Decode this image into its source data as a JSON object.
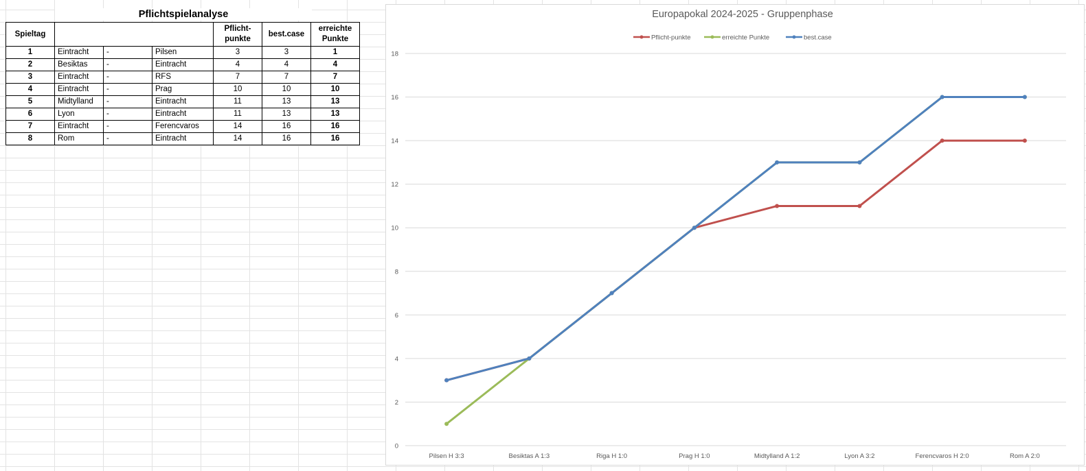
{
  "table": {
    "title": "Pflichtspielanalyse",
    "headers": {
      "spieltag": "Spieltag",
      "pflicht_line1": "Pflicht-",
      "pflicht_line2": "punkte",
      "best": "best.case",
      "erreicht_line1": "erreichte",
      "erreicht_line2": "Punkte"
    },
    "rows": [
      {
        "spieltag": "1",
        "home": "Eintracht",
        "sep": "-",
        "away": "Pilsen",
        "pflicht": "3",
        "best": "3",
        "erreicht": "1"
      },
      {
        "spieltag": "2",
        "home": "Besiktas",
        "sep": "-",
        "away": "Eintracht",
        "pflicht": "4",
        "best": "4",
        "erreicht": "4"
      },
      {
        "spieltag": "3",
        "home": "Eintracht",
        "sep": "-",
        "away": "RFS",
        "pflicht": "7",
        "best": "7",
        "erreicht": "7"
      },
      {
        "spieltag": "4",
        "home": "Eintracht",
        "sep": "-",
        "away": "Prag",
        "pflicht": "10",
        "best": "10",
        "erreicht": "10"
      },
      {
        "spieltag": "5",
        "home": "Midtylland",
        "sep": "-",
        "away": "Eintracht",
        "pflicht": "11",
        "best": "13",
        "erreicht": "13"
      },
      {
        "spieltag": "6",
        "home": "Lyon",
        "sep": "-",
        "away": "Eintracht",
        "pflicht": "11",
        "best": "13",
        "erreicht": "13"
      },
      {
        "spieltag": "7",
        "home": "Eintracht",
        "sep": "-",
        "away": "Ferencvaros",
        "pflicht": "14",
        "best": "16",
        "erreicht": "16"
      },
      {
        "spieltag": "8",
        "home": "Rom",
        "sep": "-",
        "away": "Eintracht",
        "pflicht": "14",
        "best": "16",
        "erreicht": "16"
      }
    ]
  },
  "chart_data": {
    "type": "line",
    "title": "Europapokal 2024-2025 - Gruppenphase",
    "xlabel": "",
    "ylabel": "",
    "categories": [
      "Pilsen H 3:3",
      "Besiktas A 1:3",
      "Riga H 1:0",
      "Prag H 1:0",
      "Midtylland A 1:2",
      "Lyon A 3:2",
      "Ferencvaros H 2:0",
      "Rom A 2:0"
    ],
    "series": [
      {
        "name": "Pflicht-punkte",
        "color": "#C0504D",
        "values": [
          3,
          4,
          7,
          10,
          11,
          11,
          14,
          14
        ]
      },
      {
        "name": "erreichte Punkte",
        "color": "#9BBB59",
        "values": [
          1,
          4,
          7,
          10,
          13,
          13,
          16,
          16
        ]
      },
      {
        "name": "best.case",
        "color": "#4F81BD",
        "values": [
          3,
          4,
          7,
          10,
          13,
          13,
          16,
          16
        ]
      }
    ],
    "ylim": [
      0,
      18
    ],
    "yticks": [
      0,
      2,
      4,
      6,
      8,
      10,
      12,
      14,
      16,
      18
    ],
    "grid": true,
    "legend_position": "top"
  }
}
